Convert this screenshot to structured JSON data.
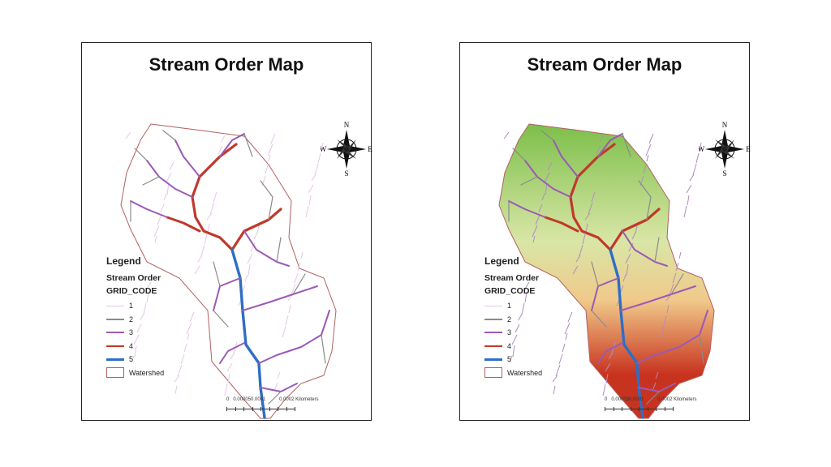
{
  "panels": [
    {
      "title": "Stream Order Map",
      "background": "none"
    },
    {
      "title": "Stream Order Map",
      "background": "elevation-gradient"
    }
  ],
  "legend": {
    "title": "Legend",
    "layer": "Stream Order",
    "field": "GRID_CODE",
    "classes": [
      {
        "label": "1",
        "color": "#e6c6e6"
      },
      {
        "label": "2",
        "color": "#8a8a8a"
      },
      {
        "label": "3",
        "color": "#9b59b6"
      },
      {
        "label": "4",
        "color": "#c0392b"
      },
      {
        "label": "5",
        "color": "#2e6ec4"
      }
    ],
    "watershed_label": "Watershed",
    "watershed_color": "#b26060"
  },
  "scale_bar": {
    "labels": [
      "0",
      "0.000050.0001",
      "0.0002 Kilometers"
    ]
  },
  "compass": {
    "n": "N",
    "s": "S",
    "e": "E",
    "w": "W"
  },
  "elevation_colors": [
    "#7cbf4a",
    "#d9e6a6",
    "#f0c98a",
    "#c8331f"
  ]
}
